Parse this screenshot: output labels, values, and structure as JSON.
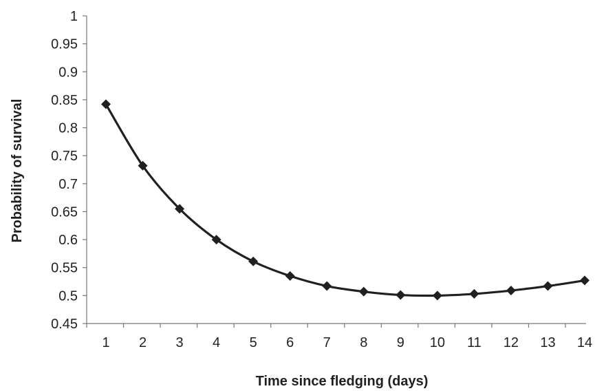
{
  "chart_data": {
    "type": "line",
    "title": "",
    "xlabel": "Time since fledging (days)",
    "ylabel": "Probability of survival",
    "x": [
      1,
      2,
      3,
      4,
      5,
      6,
      7,
      8,
      9,
      10,
      11,
      12,
      13,
      14
    ],
    "series": [
      {
        "name": "",
        "values": [
          0.842,
          0.732,
          0.655,
          0.6,
          0.561,
          0.535,
          0.517,
          0.507,
          0.501,
          0.5,
          0.503,
          0.509,
          0.517,
          0.527
        ],
        "color": "#231f20",
        "marker": "diamond"
      }
    ],
    "xlim": [
      1,
      14
    ],
    "ylim": [
      0.45,
      1
    ],
    "yticks": [
      "0.45",
      "0.5",
      "0.55",
      "0.6",
      "0.65",
      "0.7",
      "0.75",
      "0.8",
      "0.85",
      "0.9",
      "0.95",
      "1"
    ],
    "xticks": [
      "1",
      "2",
      "3",
      "4",
      "5",
      "6",
      "7",
      "8",
      "9",
      "10",
      "11",
      "12",
      "13",
      "14"
    ],
    "grid": false,
    "legend": "none"
  }
}
